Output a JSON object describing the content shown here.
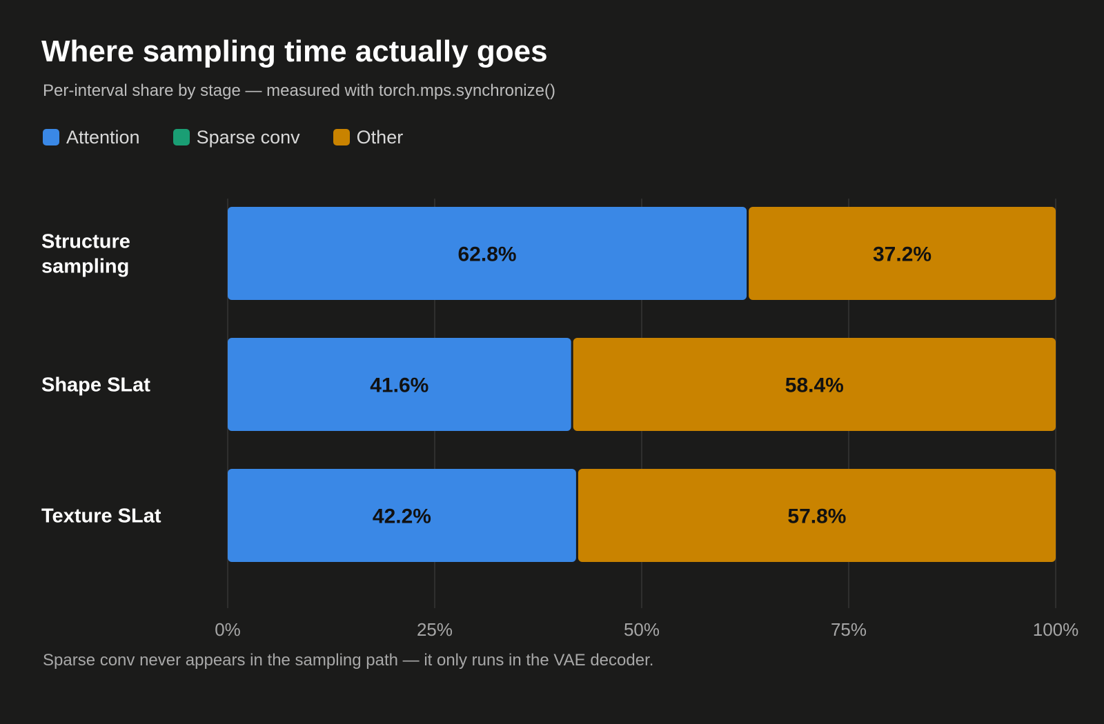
{
  "title": "Where sampling time actually goes",
  "subtitle": "Per-interval share by stage — measured with torch.mps.synchronize()",
  "footnote": "Sparse conv never appears in the sampling path — it only runs in the VAE decoder.",
  "legend": [
    {
      "label": "Attention",
      "color": "#3a88e6"
    },
    {
      "label": "Sparse conv",
      "color": "#1a9e74"
    },
    {
      "label": "Other",
      "color": "#c98300"
    }
  ],
  "chart_data": {
    "type": "bar",
    "orientation": "horizontal",
    "stacked": true,
    "categories": [
      [
        "Structure",
        "sampling"
      ],
      [
        "Shape SLat"
      ],
      [
        "Texture SLat"
      ]
    ],
    "series": [
      {
        "name": "Attention",
        "color": "#3a88e6",
        "values": [
          62.8,
          41.6,
          42.2
        ]
      },
      {
        "name": "Sparse conv",
        "color": "#1a9e74",
        "values": [
          0,
          0,
          0
        ]
      },
      {
        "name": "Other",
        "color": "#c98300",
        "values": [
          37.2,
          58.4,
          57.8
        ]
      }
    ],
    "xlim": [
      0,
      100
    ],
    "xticks": [
      0,
      25,
      50,
      75,
      100
    ],
    "xtick_labels": [
      "0%",
      "25%",
      "50%",
      "75%",
      "100%"
    ],
    "value_format": "percent-1dp",
    "grid": "vertical",
    "legend_position": "top-left"
  }
}
